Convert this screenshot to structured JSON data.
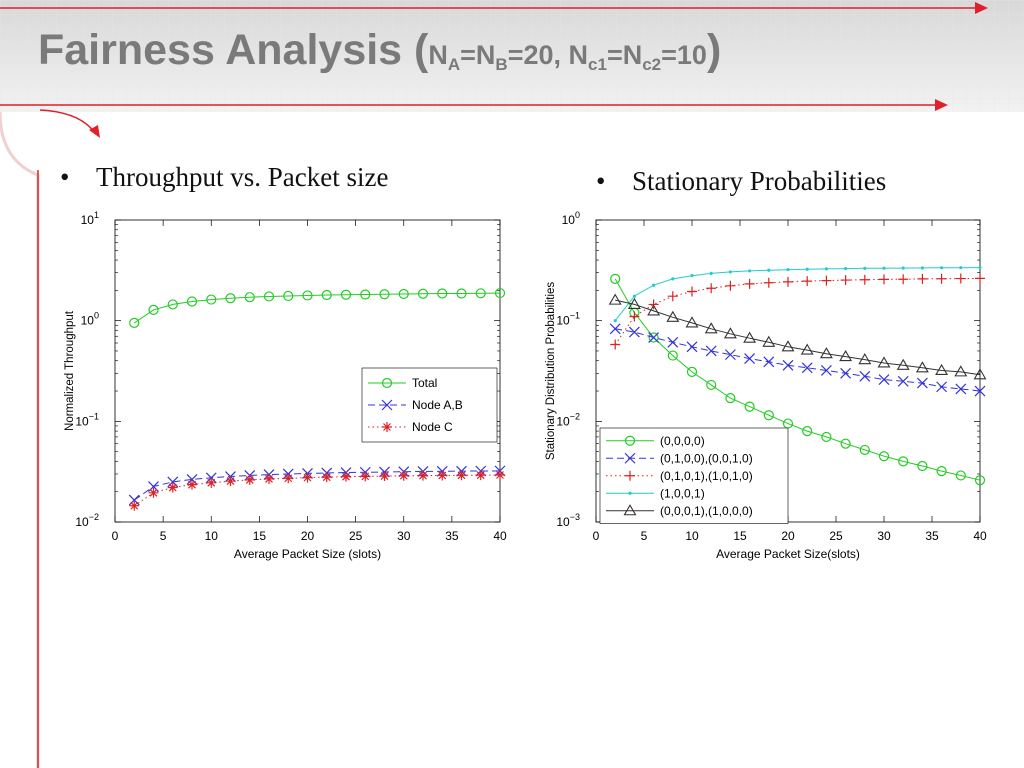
{
  "slide": {
    "title": "Fairness Analysis (",
    "title_formula": {
      "na": "N",
      "na_sub": "A",
      "eq1": "=N",
      "nb_sub": "B",
      "eq2": "=20, N",
      "c1_sub": "c1",
      "eq3": "=N",
      "c2_sub": "c2",
      "eq4": "=10"
    },
    "title_close": ")",
    "title_color": "#7a7a7a",
    "accent_color": "#e0202a",
    "bullets": [
      {
        "dot": "•",
        "text": "Throughput vs. Packet size"
      },
      {
        "dot": "•",
        "text": "Stationary Probabilities"
      }
    ]
  },
  "chart_data": [
    {
      "type": "scatter",
      "scale": "log-y",
      "xlabel": "Average Packet Size (slots)",
      "ylabel": "Normalized Throughput",
      "xlim": [
        0,
        40
      ],
      "ylim": [
        0.01,
        10
      ],
      "xticks": [
        0,
        5,
        10,
        15,
        20,
        25,
        30,
        35,
        40
      ],
      "yticks": [
        {
          "value": 0.01,
          "base": "10",
          "exp": "−2"
        },
        {
          "value": 0.1,
          "base": "10",
          "exp": "−1"
        },
        {
          "value": 1,
          "base": "10",
          "exp": "0"
        },
        {
          "value": 10,
          "base": "10",
          "exp": "1"
        }
      ],
      "legend_position": "right",
      "x": [
        2,
        4,
        6,
        8,
        10,
        12,
        14,
        16,
        18,
        20,
        22,
        24,
        26,
        28,
        30,
        32,
        34,
        36,
        38,
        40
      ],
      "series": [
        {
          "name": "Total",
          "color": "#22cc22",
          "marker": "circle",
          "line": "solid",
          "values": [
            0.95,
            1.28,
            1.45,
            1.55,
            1.62,
            1.67,
            1.71,
            1.74,
            1.76,
            1.78,
            1.8,
            1.81,
            1.82,
            1.83,
            1.84,
            1.85,
            1.86,
            1.86,
            1.87,
            1.88
          ]
        },
        {
          "name": "Node A,B",
          "color": "#3333dd",
          "marker": "x",
          "line": "dashed",
          "values": [
            0.0165,
            0.0225,
            0.025,
            0.0265,
            0.0275,
            0.0283,
            0.029,
            0.0296,
            0.03,
            0.0304,
            0.0307,
            0.031,
            0.0312,
            0.0314,
            0.0316,
            0.0318,
            0.0319,
            0.032,
            0.0321,
            0.0322
          ]
        },
        {
          "name": "Node C",
          "color": "#dd2222",
          "marker": "star",
          "line": "dotted",
          "values": [
            0.0145,
            0.0195,
            0.022,
            0.0235,
            0.0245,
            0.0255,
            0.0262,
            0.0268,
            0.0272,
            0.0276,
            0.0279,
            0.0282,
            0.0284,
            0.0286,
            0.0288,
            0.0289,
            0.029,
            0.0291,
            0.0292,
            0.0293
          ]
        }
      ]
    },
    {
      "type": "scatter",
      "scale": "log-y",
      "xlabel": "Average Packet Size(slots)",
      "ylabel": "Stationary Distribution Probabilities",
      "xlim": [
        0,
        40
      ],
      "ylim": [
        0.001,
        1
      ],
      "xticks": [
        0,
        5,
        10,
        15,
        20,
        25,
        30,
        35,
        40
      ],
      "yticks": [
        {
          "value": 0.001,
          "base": "10",
          "exp": "−3"
        },
        {
          "value": 0.01,
          "base": "10",
          "exp": "−2"
        },
        {
          "value": 0.1,
          "base": "10",
          "exp": "−1"
        },
        {
          "value": 1,
          "base": "10",
          "exp": "0"
        }
      ],
      "legend_position": "bottom-left",
      "x": [
        2,
        4,
        6,
        8,
        10,
        12,
        14,
        16,
        18,
        20,
        22,
        24,
        26,
        28,
        30,
        32,
        34,
        36,
        38,
        40
      ],
      "series": [
        {
          "name": "(0,0,0,0)",
          "color": "#22cc22",
          "marker": "circle",
          "line": "solid",
          "values": [
            0.26,
            0.12,
            0.068,
            0.045,
            0.031,
            0.023,
            0.017,
            0.014,
            0.0115,
            0.0095,
            0.008,
            0.007,
            0.006,
            0.0052,
            0.0045,
            0.004,
            0.0036,
            0.0032,
            0.0029,
            0.0026
          ]
        },
        {
          "name": "(0,1,0,0),(0,0,1,0)",
          "color": "#3333dd",
          "marker": "x",
          "line": "dashed",
          "values": [
            0.083,
            0.077,
            0.068,
            0.061,
            0.055,
            0.05,
            0.046,
            0.042,
            0.039,
            0.036,
            0.034,
            0.032,
            0.03,
            0.028,
            0.026,
            0.025,
            0.024,
            0.022,
            0.021,
            0.02
          ]
        },
        {
          "name": "(0,1,0,1),(1,0,1,0)",
          "color": "#dd2222",
          "marker": "plus",
          "line": "dotted",
          "values": [
            0.058,
            0.11,
            0.145,
            0.175,
            0.195,
            0.21,
            0.222,
            0.232,
            0.238,
            0.243,
            0.247,
            0.25,
            0.253,
            0.255,
            0.257,
            0.258,
            0.26,
            0.261,
            0.262,
            0.263
          ]
        },
        {
          "name": "(1,0,0,1)",
          "color": "#22cccc",
          "marker": "dot",
          "line": "solid",
          "values": [
            0.1,
            0.175,
            0.225,
            0.26,
            0.28,
            0.295,
            0.305,
            0.312,
            0.317,
            0.321,
            0.324,
            0.327,
            0.329,
            0.331,
            0.332,
            0.333,
            0.334,
            0.335,
            0.336,
            0.337
          ]
        },
        {
          "name": "(0,0,0,1),(1,0,0,0)",
          "color": "#333333",
          "marker": "triangle",
          "line": "solid",
          "values": [
            0.16,
            0.145,
            0.125,
            0.108,
            0.095,
            0.083,
            0.074,
            0.067,
            0.061,
            0.055,
            0.051,
            0.047,
            0.044,
            0.041,
            0.038,
            0.036,
            0.034,
            0.032,
            0.031,
            0.029
          ]
        }
      ]
    }
  ]
}
